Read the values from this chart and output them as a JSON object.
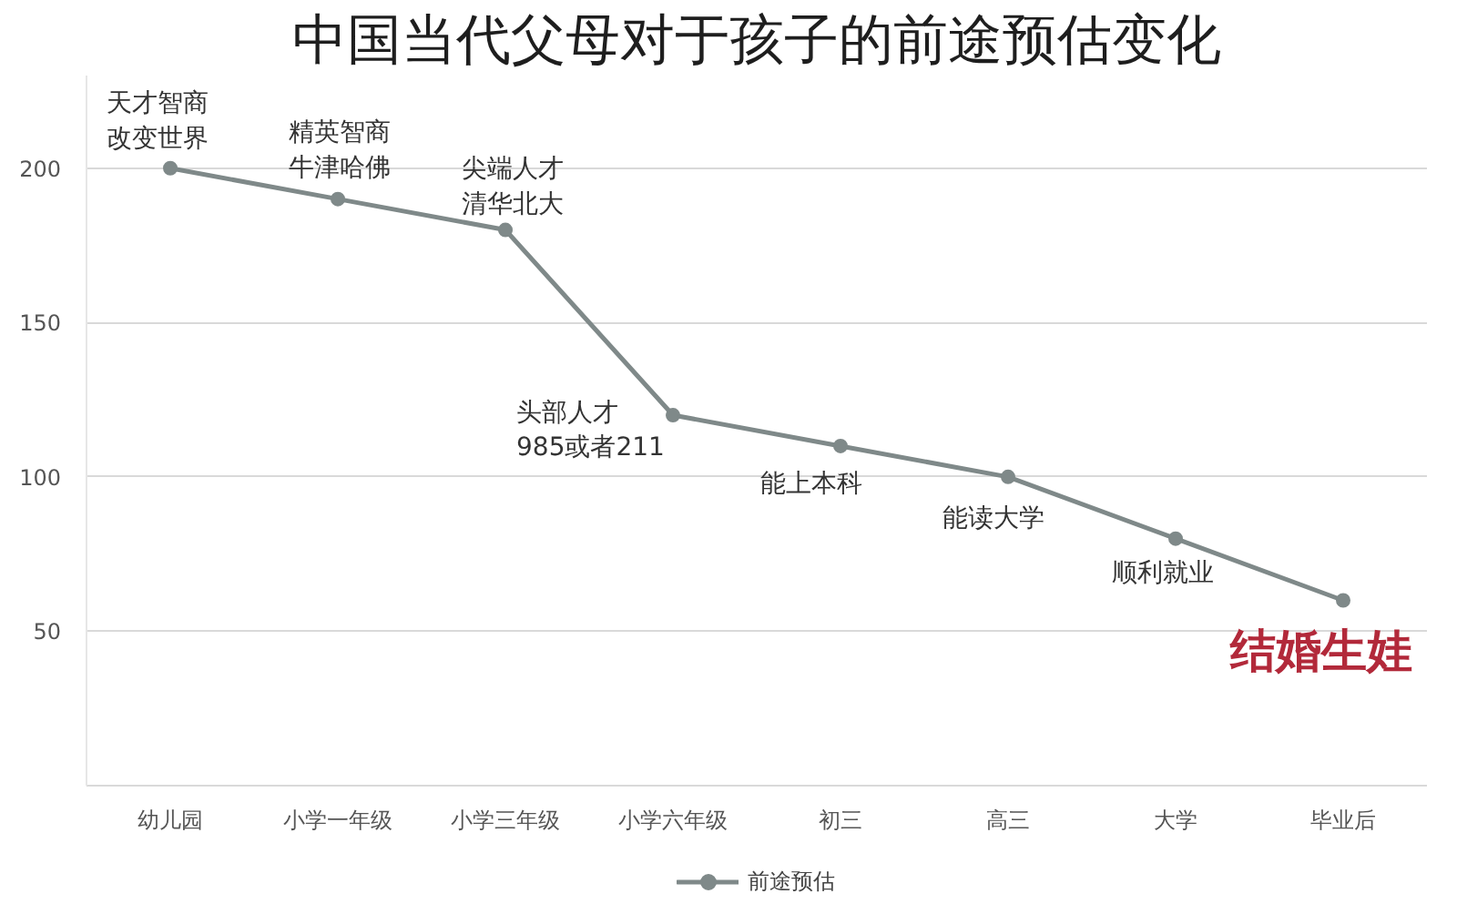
{
  "chart_data": {
    "type": "line",
    "title": "中国当代父母对于孩子的前途预估变化",
    "categories": [
      "幼儿园",
      "小学一年级",
      "小学三年级",
      "小学六年级",
      "初三",
      "高三",
      "大学",
      "毕业后"
    ],
    "series": [
      {
        "name": "前途预估",
        "color": "#7f8989",
        "values": [
          200,
          190,
          180,
          120,
          110,
          100,
          80,
          60
        ],
        "value_labels": [
          "天才智商改变世界",
          "精英智商牛津哈佛",
          "尖端人才清华北大",
          "头部人才985或者211",
          "能上本科",
          "能读大学",
          "顺利就业",
          "结婚生娃"
        ]
      }
    ],
    "ylim": [
      0,
      230
    ],
    "yticks": [
      50,
      100,
      150,
      200
    ],
    "grid": "y",
    "legend": "bottom",
    "marker": "circle"
  }
}
